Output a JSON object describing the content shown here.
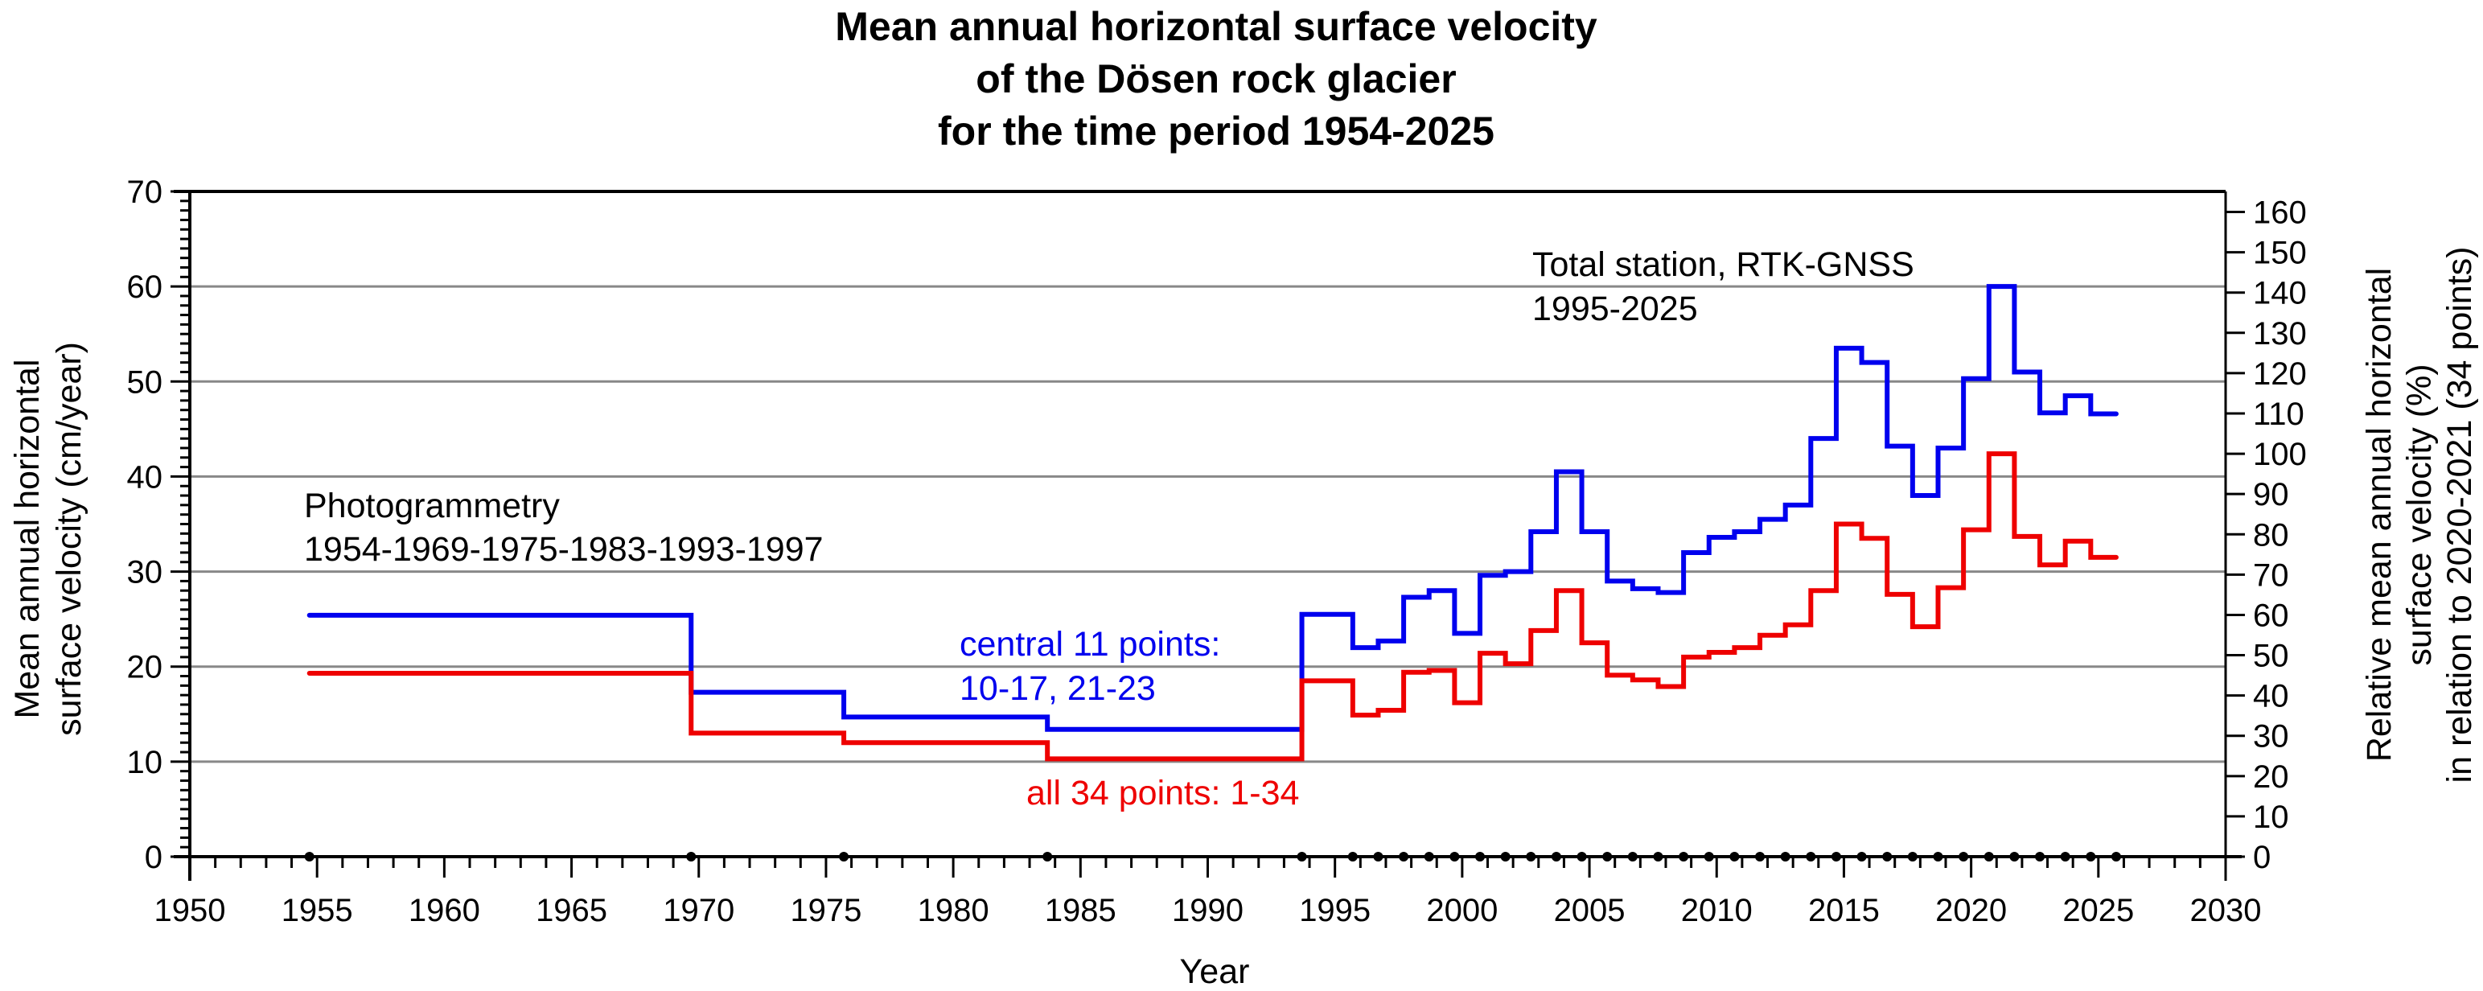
{
  "chart_data": {
    "type": "line",
    "subtype": "step",
    "title": [
      "Mean annual horizontal surface velocity",
      "of the Dösen rock glacier",
      "for the time period 1954-2025"
    ],
    "xlabel": "Year",
    "ylabel": [
      "Mean annual horizontal",
      "surface velocity (cm/year)"
    ],
    "y2label": [
      "Relative mean annual horizontal",
      "surface velocity (%)",
      "in relation to 2020-2021 (34 points)"
    ],
    "xlim": [
      1950,
      2030
    ],
    "ylim": [
      0,
      70
    ],
    "y2lim": [
      0,
      160
    ],
    "y2_reference_value_cm": 42.4,
    "xticks": [
      1950,
      1955,
      1960,
      1965,
      1970,
      1975,
      1980,
      1985,
      1990,
      1995,
      2000,
      2005,
      2010,
      2015,
      2020,
      2025,
      2030
    ],
    "yticks": [
      0,
      10,
      20,
      30,
      40,
      50,
      60,
      70
    ],
    "y2ticks": [
      0,
      10,
      20,
      30,
      40,
      50,
      60,
      70,
      80,
      90,
      100,
      110,
      120,
      130,
      140,
      150,
      160
    ],
    "grid": "horizontal",
    "epochs": [
      1954.7,
      1969.7,
      1975.7,
      1983.7,
      1993.7,
      1995.7,
      1996.7,
      1997.7,
      1998.7,
      1999.7,
      2000.7,
      2001.7,
      2002.7,
      2003.7,
      2004.7,
      2005.7,
      2006.7,
      2007.7,
      2008.7,
      2009.7,
      2010.7,
      2011.7,
      2012.7,
      2013.7,
      2014.7,
      2015.7,
      2016.7,
      2017.7,
      2018.7,
      2019.7,
      2020.7,
      2021.7,
      2022.7,
      2023.7,
      2024.7,
      2025.7
    ],
    "series": [
      {
        "name": "central 11 points: 10-17, 21-23",
        "color": "#0000ee",
        "values": [
          25.4,
          17.3,
          14.7,
          13.4,
          25.5,
          22.0,
          22.7,
          27.3,
          28.0,
          23.5,
          29.6,
          30.0,
          34.2,
          40.5,
          34.2,
          29.0,
          28.2,
          27.8,
          32.0,
          33.6,
          34.2,
          35.5,
          37.0,
          44.0,
          53.5,
          52.0,
          43.2,
          38.0,
          43.0,
          50.3,
          60.0,
          51.0,
          46.7,
          48.5,
          46.6
        ]
      },
      {
        "name": "all 34 points: 1-34",
        "color": "#ee0000",
        "values": [
          19.3,
          13.0,
          12.0,
          10.3,
          18.5,
          14.9,
          15.4,
          19.4,
          19.6,
          16.2,
          21.4,
          20.3,
          23.8,
          28.0,
          22.5,
          19.1,
          18.6,
          17.9,
          21.0,
          21.5,
          22.0,
          23.3,
          24.4,
          28.0,
          35.0,
          33.5,
          27.6,
          24.2,
          28.3,
          34.4,
          42.4,
          33.7,
          30.7,
          33.2,
          31.5
        ]
      }
    ],
    "annotations": {
      "photogrammetry": [
        "Photogrammetry",
        "1954-1969-1975-1983-1993-1997"
      ],
      "total_station": [
        "Total station, RTK-GNSS",
        "1995-2025"
      ],
      "central_label": [
        "central 11 points:",
        "10-17, 21-23"
      ],
      "all_label": "all 34 points: 1-34"
    }
  }
}
